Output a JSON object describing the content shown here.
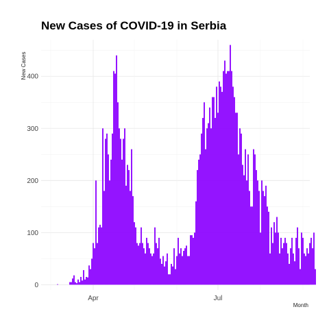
{
  "chart_data": {
    "type": "bar",
    "title": "New Cases of COVID-19 in Serbia",
    "xlabel": "Month",
    "ylabel": "New Cases",
    "x_start": "2020-03-06",
    "x_end": "2020-08-31",
    "ylim": [
      -10,
      470
    ],
    "y_ticks": [
      0,
      100,
      200,
      300,
      400
    ],
    "x_ticks": [
      {
        "date": "2020-04-01",
        "label": "Apr"
      },
      {
        "date": "2020-07-01",
        "label": "Jul"
      }
    ],
    "x_minor_ticks": [
      "2020-03-01",
      "2020-05-01",
      "2020-06-01",
      "2020-08-01",
      "2020-09-01"
    ],
    "grid": true,
    "bar_color": "#8B00FF",
    "values": [
      1,
      0,
      0,
      0,
      0,
      0,
      0,
      0,
      0,
      5,
      5,
      12,
      18,
      5,
      3,
      10,
      5,
      15,
      8,
      28,
      10,
      15,
      14,
      37,
      30,
      50,
      80,
      70,
      200,
      80,
      110,
      115,
      110,
      300,
      180,
      280,
      290,
      250,
      200,
      240,
      290,
      410,
      405,
      440,
      350,
      300,
      280,
      240,
      280,
      300,
      190,
      230,
      220,
      180,
      260,
      170,
      120,
      110,
      80,
      75,
      80,
      110,
      80,
      70,
      60,
      90,
      80,
      70,
      60,
      55,
      60,
      110,
      80,
      70,
      90,
      50,
      40,
      55,
      35,
      45,
      60,
      20,
      20,
      40,
      35,
      70,
      30,
      55,
      90,
      60,
      70,
      55,
      65,
      70,
      75,
      55,
      55,
      95,
      95,
      90,
      100,
      160,
      220,
      240,
      250,
      290,
      320,
      350,
      260,
      300,
      310,
      340,
      300,
      360,
      360,
      320,
      380,
      330,
      390,
      380,
      370,
      410,
      430,
      405,
      410,
      410,
      460,
      410,
      380,
      360,
      330,
      330,
      250,
      300,
      290,
      230,
      210,
      260,
      200,
      250,
      180,
      150,
      150,
      260,
      250,
      220,
      200,
      180,
      100,
      200,
      180,
      170,
      190,
      150,
      140,
      60,
      110,
      80,
      120,
      100,
      130,
      100,
      60,
      90,
      70,
      80,
      90,
      80,
      60,
      40,
      70,
      90,
      60,
      45,
      90,
      110,
      70,
      30,
      100,
      90,
      60,
      55,
      70,
      60,
      80,
      90,
      70,
      100,
      30
    ]
  }
}
